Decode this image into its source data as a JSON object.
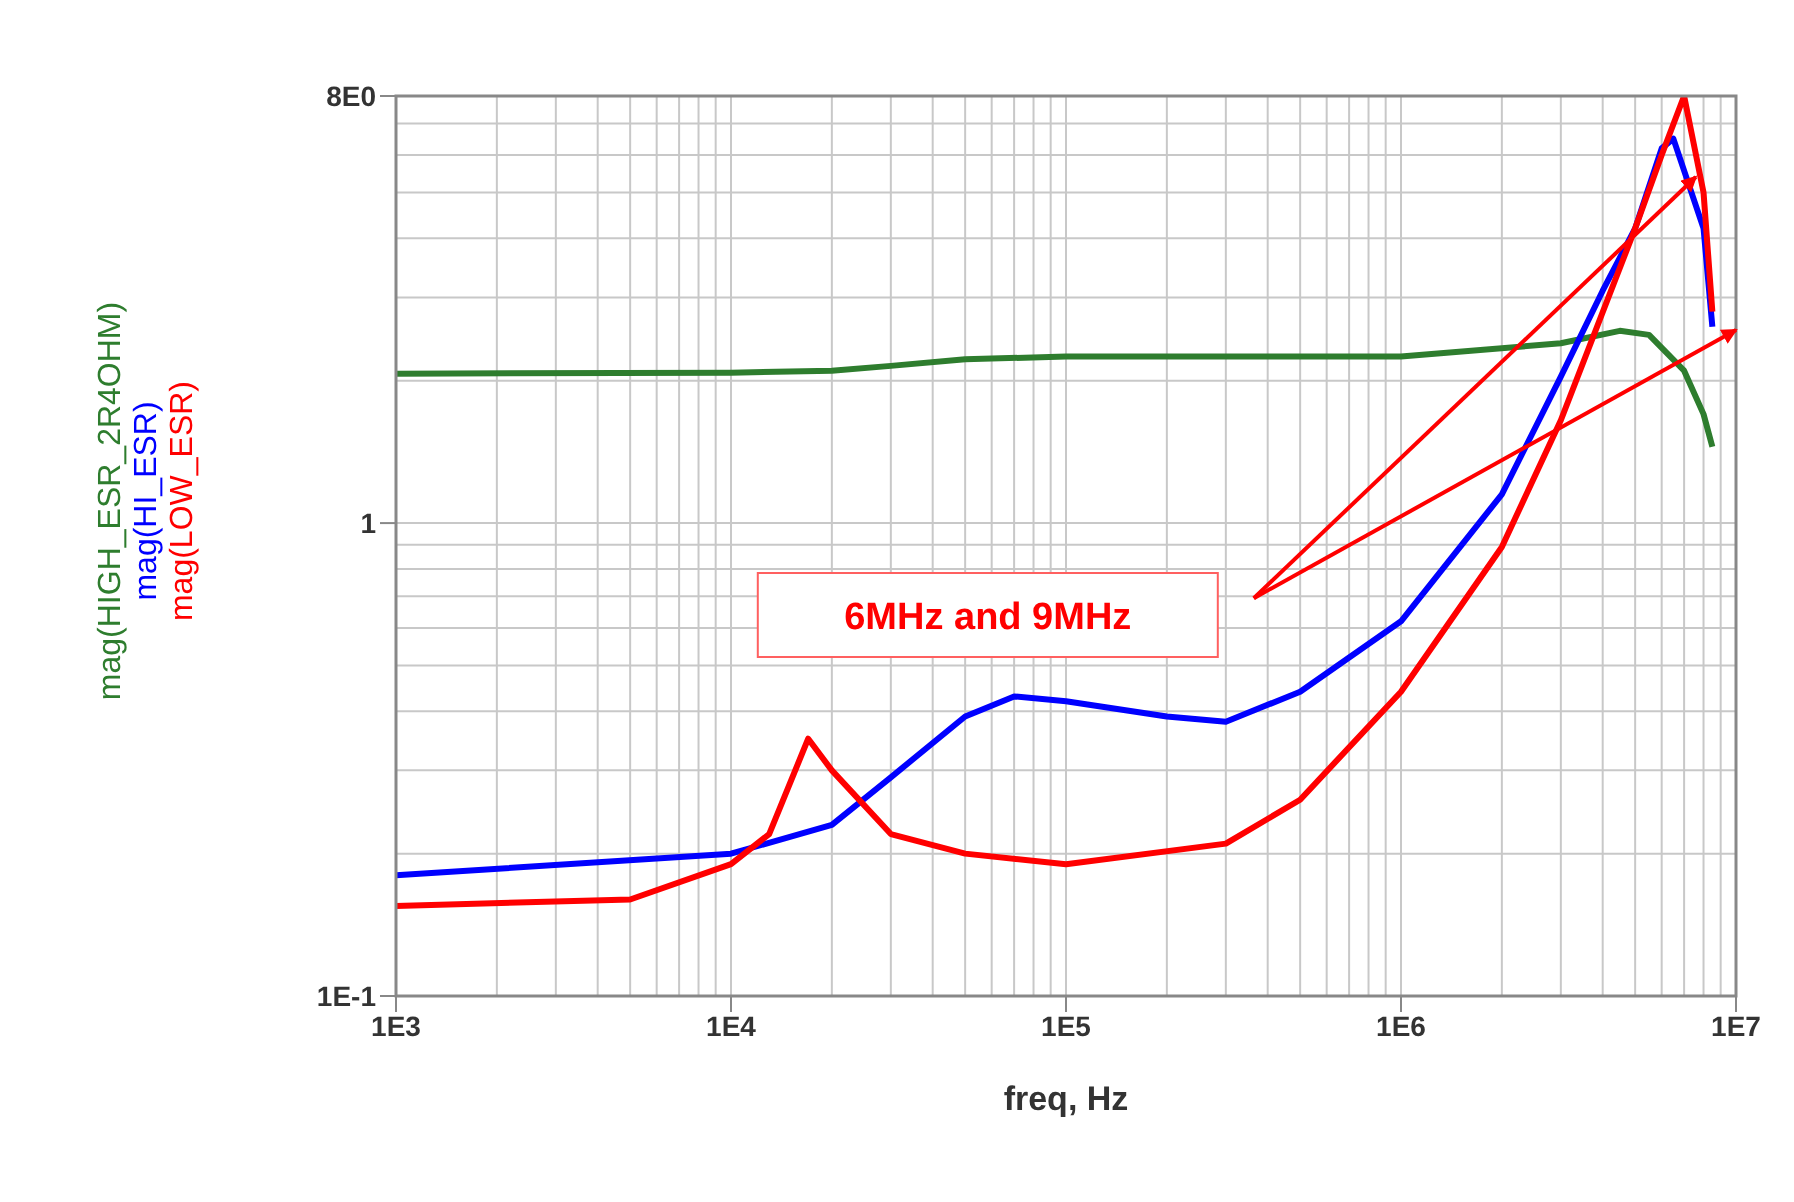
{
  "chart_data": {
    "type": "line",
    "xlabel": "freq, Hz",
    "log": "xy",
    "grid": true,
    "legend": "left",
    "xlim": [
      1000,
      10000000
    ],
    "ylim": [
      0.1,
      8
    ],
    "xticks": [
      {
        "value": 1000,
        "label": "1E3"
      },
      {
        "value": 10000,
        "label": "1E4"
      },
      {
        "value": 100000,
        "label": "1E5"
      },
      {
        "value": 1000000,
        "label": "1E6"
      },
      {
        "value": 10000000,
        "label": "1E7"
      }
    ],
    "yticks": [
      {
        "value": 0.1,
        "label": "1E-1"
      },
      1,
      {
        "value": 8,
        "label": "8E0"
      }
    ],
    "annotations": [
      "6MHz and 9MHz"
    ],
    "series": [
      {
        "name": "mag(HIGH_ESR_2R4OHM)",
        "color": "#2e7d2e",
        "x": [
          1000,
          10000,
          20000,
          30000,
          50000,
          100000,
          300000,
          1000000,
          3000000,
          4500000,
          5500000,
          7000000,
          8000000,
          8500000
        ],
        "values": [
          2.07,
          2.08,
          2.1,
          2.15,
          2.22,
          2.25,
          2.25,
          2.25,
          2.4,
          2.55,
          2.5,
          2.1,
          1.7,
          1.45
        ]
      },
      {
        "name": "mag(HI_ESR)",
        "color": "#0000ff",
        "x": [
          1000,
          10000,
          20000,
          30000,
          50000,
          70000,
          100000,
          200000,
          300000,
          500000,
          1000000,
          2000000,
          3000000,
          4000000,
          5000000,
          6000000,
          6500000,
          8000000,
          8500000
        ],
        "values": [
          0.18,
          0.2,
          0.23,
          0.29,
          0.39,
          0.43,
          0.42,
          0.39,
          0.38,
          0.44,
          0.62,
          1.15,
          2.04,
          3.1,
          4.2,
          6.2,
          6.5,
          4.2,
          2.6
        ]
      },
      {
        "name": "mag(LOW_ESR)",
        "color": "#ff0000",
        "x": [
          1000,
          5000,
          10000,
          13000,
          17000,
          20000,
          30000,
          50000,
          100000,
          300000,
          500000,
          1000000,
          2000000,
          3000000,
          5000000,
          6000000,
          7000000,
          8000000,
          8500000
        ],
        "values": [
          0.155,
          0.16,
          0.19,
          0.22,
          0.35,
          0.3,
          0.22,
          0.2,
          0.19,
          0.21,
          0.26,
          0.44,
          0.89,
          1.65,
          4.2,
          6,
          8,
          5,
          2.8
        ]
      }
    ]
  }
}
